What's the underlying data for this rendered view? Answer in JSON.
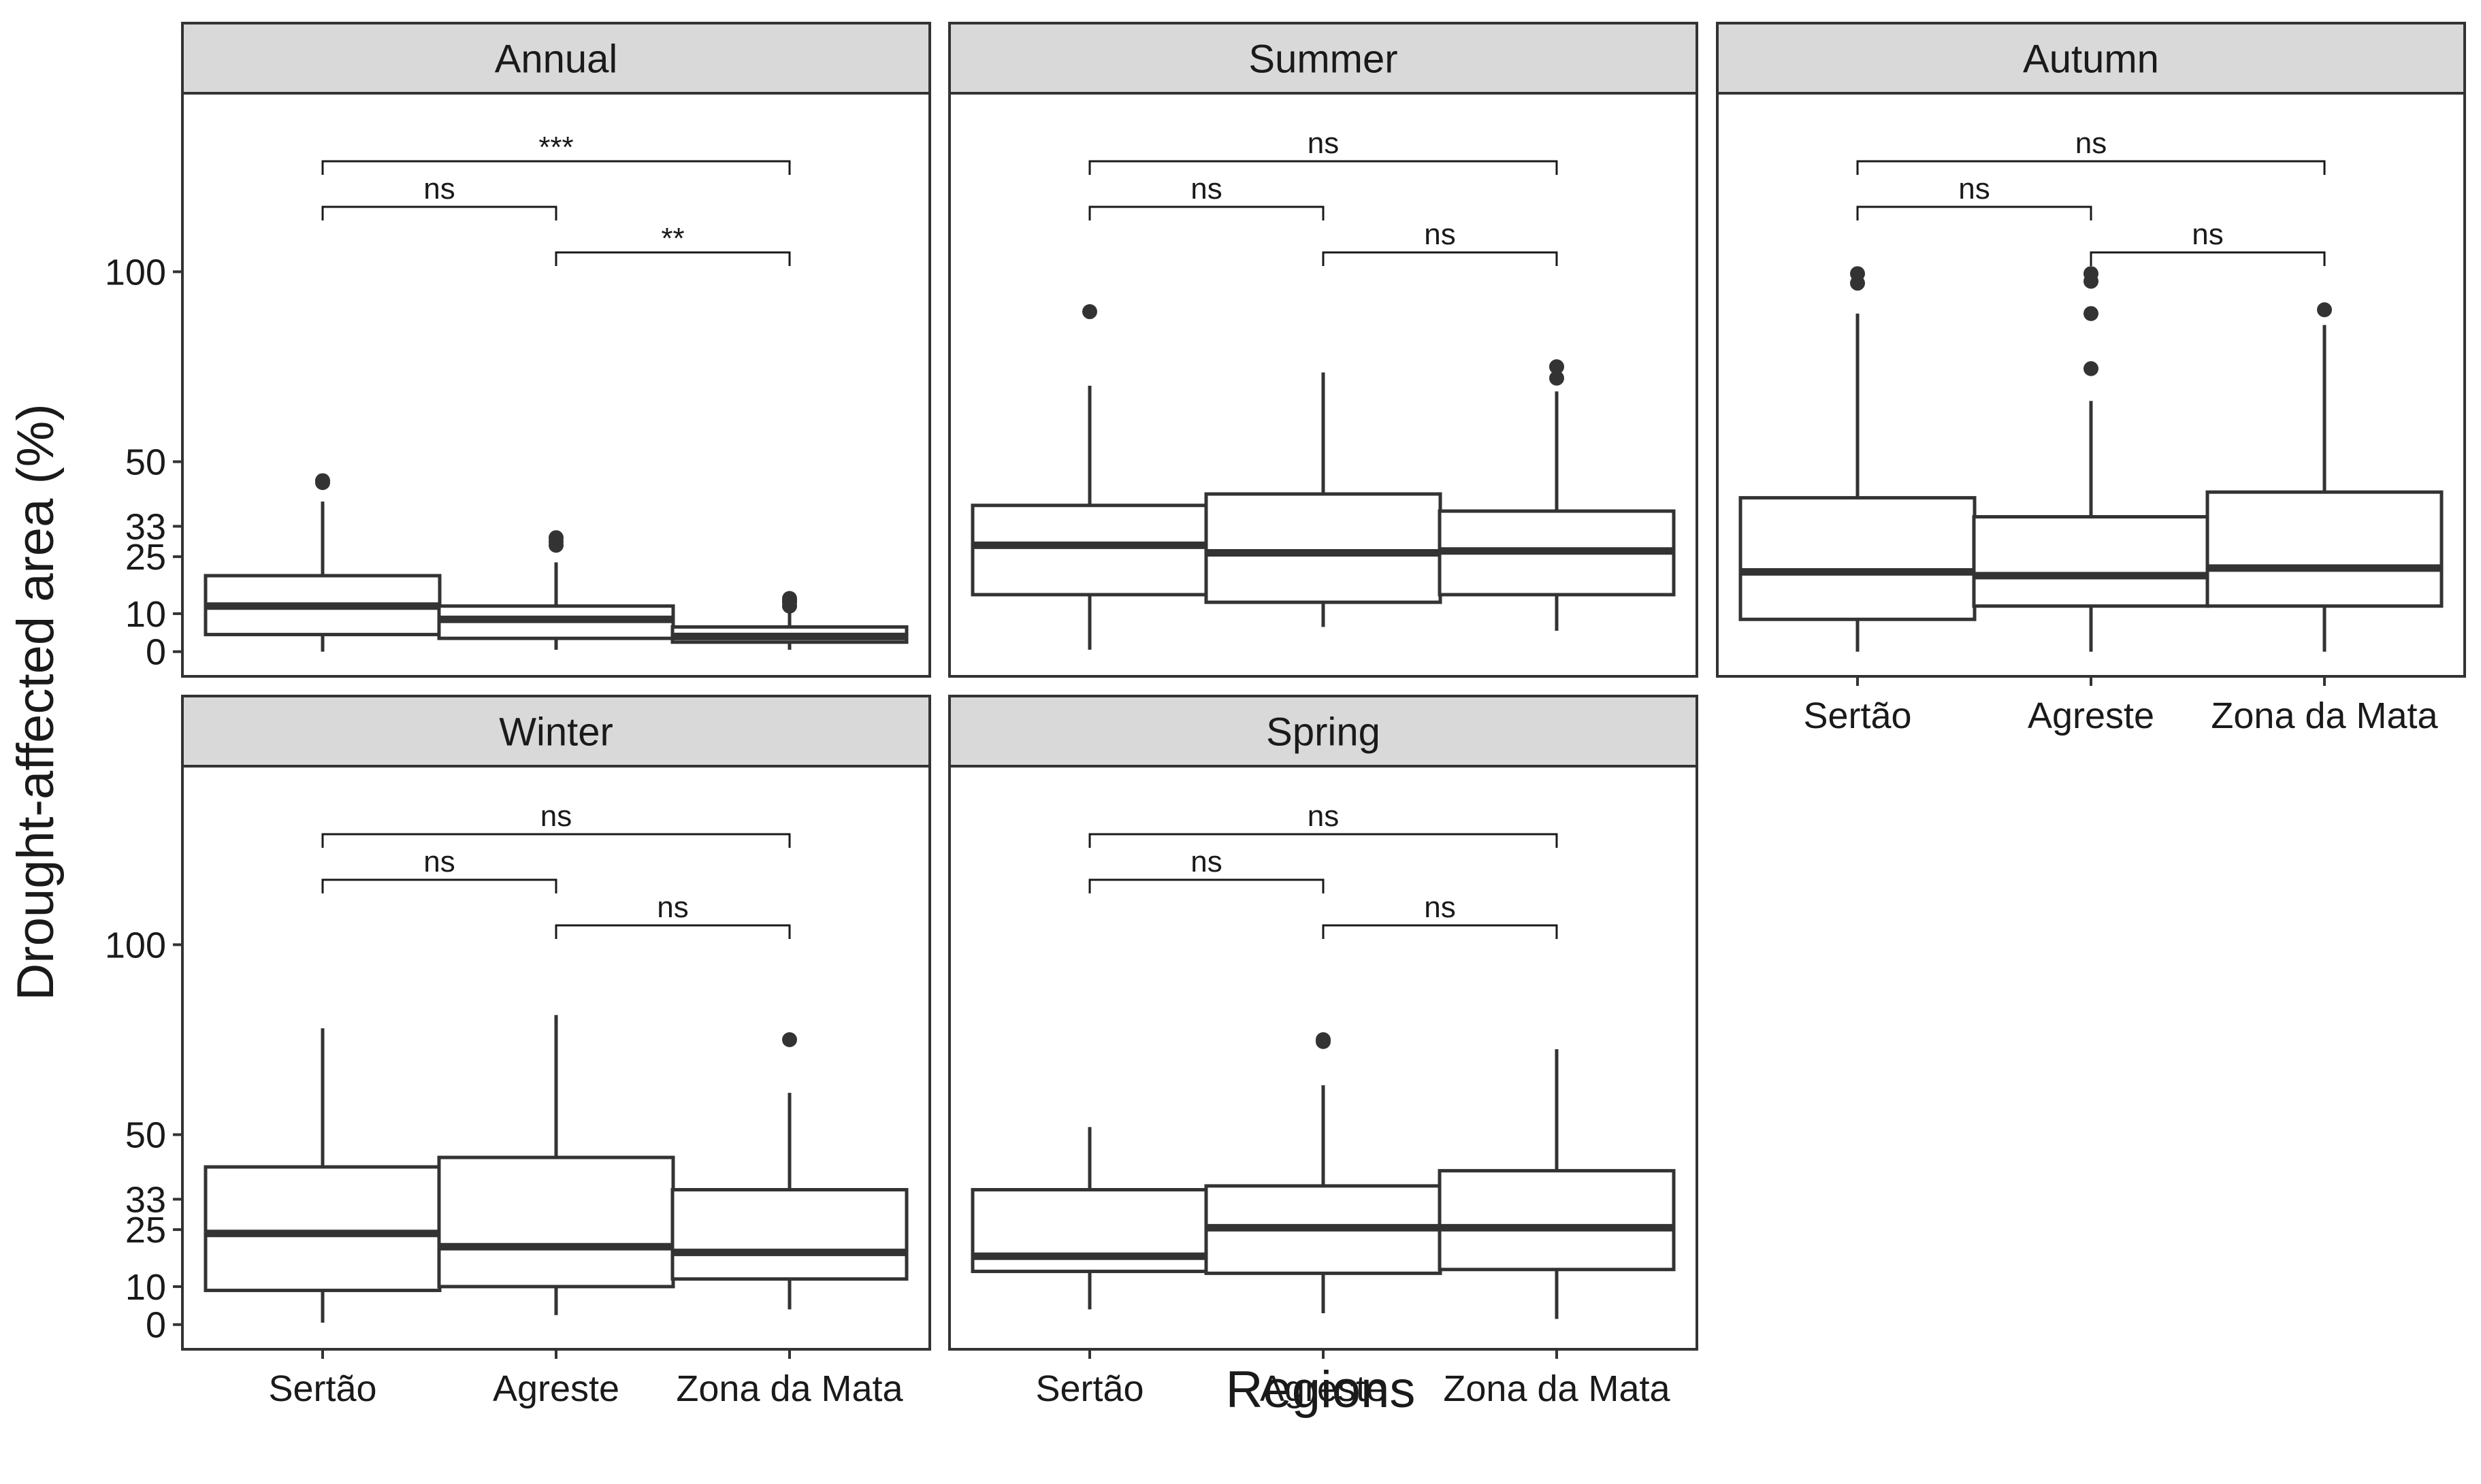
{
  "figure": {
    "ylabel": "Drought-affected area (%)",
    "xlabel": "Regions",
    "y_ticks": [
      0,
      10,
      25,
      33,
      50,
      100
    ],
    "y_tick_labels": [
      "0",
      "10",
      "25",
      "33",
      "50",
      "100"
    ],
    "categories": [
      "Sertão",
      "Agreste",
      "Zona da Mata"
    ],
    "colors": {
      "line": "#333333",
      "strip_fill": "#d9d9d9",
      "background": "#ffffff"
    }
  },
  "chart_data": [
    {
      "type": "box",
      "title": "Annual",
      "categories": [
        "Sertão",
        "Agreste",
        "Zona da Mata"
      ],
      "ylim": [
        -6.5,
        147
      ],
      "boxes": [
        {
          "category": "Sertão",
          "min": 0,
          "q1": 4.5,
          "median": 12,
          "q3": 20,
          "max": 39.5,
          "outliers": [
            44.5,
            45
          ]
        },
        {
          "category": "Agreste",
          "min": 0.5,
          "q1": 3.5,
          "median": 8.5,
          "q3": 12,
          "max": 23.5,
          "outliers": [
            28,
            29,
            30
          ]
        },
        {
          "category": "Zona da Mata",
          "min": 0.5,
          "q1": 2.5,
          "median": 4,
          "q3": 6.5,
          "max": 11,
          "outliers": [
            12,
            13,
            13.5,
            14
          ]
        }
      ],
      "comparisons": [
        {
          "from": "Sertão",
          "to": "Agreste",
          "label": "ns"
        },
        {
          "from": "Agreste",
          "to": "Zona da Mata",
          "label": "**"
        },
        {
          "from": "Sertão",
          "to": "Zona da Mata",
          "label": "***"
        }
      ]
    },
    {
      "type": "box",
      "title": "Summer",
      "categories": [
        "Sertão",
        "Agreste",
        "Zona da Mata"
      ],
      "ylim": [
        -6.5,
        147
      ],
      "boxes": [
        {
          "category": "Sertão",
          "min": 0.5,
          "q1": 15,
          "median": 28,
          "q3": 38.5,
          "max": 70,
          "outliers": [
            89.5
          ]
        },
        {
          "category": "Agreste",
          "min": 6.5,
          "q1": 13,
          "median": 26,
          "q3": 41.5,
          "max": 73.5,
          "outliers": []
        },
        {
          "category": "Zona da Mata",
          "min": 5.5,
          "q1": 15,
          "median": 26.5,
          "q3": 37,
          "max": 68.5,
          "outliers": [
            72,
            75
          ]
        }
      ],
      "comparisons": [
        {
          "from": "Sertão",
          "to": "Agreste",
          "label": "ns"
        },
        {
          "from": "Agreste",
          "to": "Zona da Mata",
          "label": "ns"
        },
        {
          "from": "Sertão",
          "to": "Zona da Mata",
          "label": "ns"
        }
      ]
    },
    {
      "type": "box",
      "title": "Autumn",
      "categories": [
        "Sertão",
        "Agreste",
        "Zona da Mata"
      ],
      "ylim": [
        -6.5,
        147
      ],
      "boxes": [
        {
          "category": "Sertão",
          "min": 0,
          "q1": 8.5,
          "median": 21,
          "q3": 40.5,
          "max": 89,
          "outliers": [
            97,
            99.5
          ]
        },
        {
          "category": "Agreste",
          "min": 0,
          "q1": 12,
          "median": 20,
          "q3": 35.5,
          "max": 66,
          "outliers": [
            74.5,
            89,
            97.5,
            99.5
          ]
        },
        {
          "category": "Zona da Mata",
          "min": 0,
          "q1": 12,
          "median": 22,
          "q3": 42,
          "max": 86,
          "outliers": [
            90
          ]
        }
      ],
      "comparisons": [
        {
          "from": "Sertão",
          "to": "Agreste",
          "label": "ns"
        },
        {
          "from": "Agreste",
          "to": "Zona da Mata",
          "label": "ns"
        },
        {
          "from": "Sertão",
          "to": "Zona da Mata",
          "label": "ns"
        }
      ]
    },
    {
      "type": "box",
      "title": "Winter",
      "categories": [
        "Sertão",
        "Agreste",
        "Zona da Mata"
      ],
      "ylim": [
        -6.5,
        147
      ],
      "boxes": [
        {
          "category": "Sertão",
          "min": 0.5,
          "q1": 9,
          "median": 24,
          "q3": 41.5,
          "max": 78,
          "outliers": []
        },
        {
          "category": "Agreste",
          "min": 2.5,
          "q1": 10,
          "median": 20.5,
          "q3": 44,
          "max": 81.5,
          "outliers": []
        },
        {
          "category": "Zona da Mata",
          "min": 4,
          "q1": 12,
          "median": 19,
          "q3": 35.5,
          "max": 61,
          "outliers": [
            75
          ]
        }
      ],
      "comparisons": [
        {
          "from": "Sertão",
          "to": "Agreste",
          "label": "ns"
        },
        {
          "from": "Agreste",
          "to": "Zona da Mata",
          "label": "ns"
        },
        {
          "from": "Sertão",
          "to": "Zona da Mata",
          "label": "ns"
        }
      ]
    },
    {
      "type": "box",
      "title": "Spring",
      "categories": [
        "Sertão",
        "Agreste",
        "Zona da Mata"
      ],
      "ylim": [
        -6.5,
        147
      ],
      "boxes": [
        {
          "category": "Sertão",
          "min": 4,
          "q1": 14,
          "median": 18,
          "q3": 35.5,
          "max": 52,
          "outliers": []
        },
        {
          "category": "Agreste",
          "min": 3,
          "q1": 13.5,
          "median": 25.5,
          "q3": 36.5,
          "max": 63,
          "outliers": [
            74.5,
            75
          ]
        },
        {
          "category": "Zona da Mata",
          "min": 1.5,
          "q1": 14.5,
          "median": 25.5,
          "q3": 40.5,
          "max": 72.5,
          "outliers": []
        }
      ],
      "comparisons": [
        {
          "from": "Sertão",
          "to": "Agreste",
          "label": "ns"
        },
        {
          "from": "Agreste",
          "to": "Zona da Mata",
          "label": "ns"
        },
        {
          "from": "Sertão",
          "to": "Zona da Mata",
          "label": "ns"
        }
      ]
    }
  ]
}
